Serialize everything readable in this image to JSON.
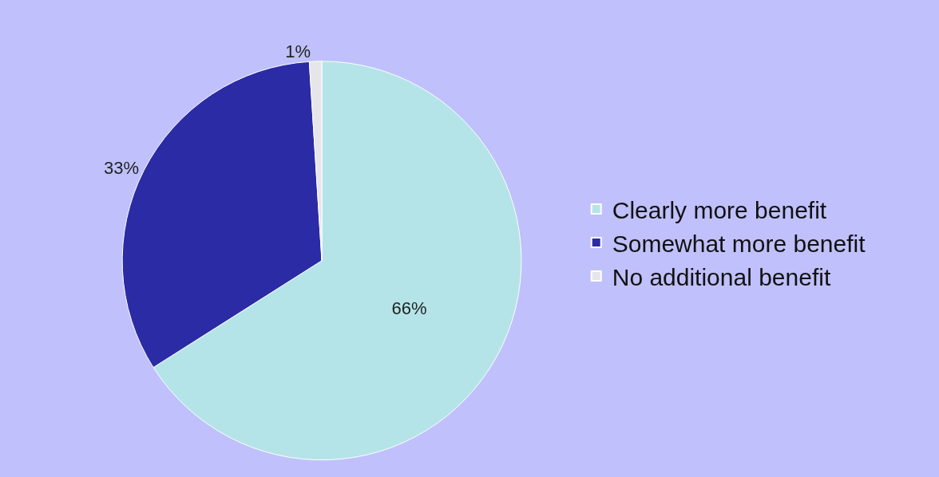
{
  "chart_data": {
    "type": "pie",
    "categories": [
      "Clearly more benefit",
      "Somewhat more benefit",
      "No additional benefit"
    ],
    "values": [
      66,
      33,
      1
    ],
    "colors": [
      "#b4e4e8",
      "#2b2ba6",
      "#e6e6ea"
    ],
    "value_labels": [
      "66%",
      "33%",
      "1%"
    ],
    "legend": "right"
  }
}
